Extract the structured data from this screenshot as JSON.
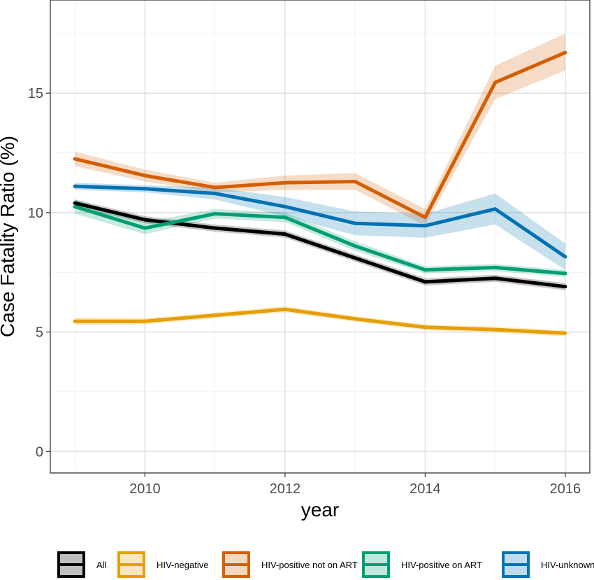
{
  "chart_data": {
    "type": "line",
    "title": "",
    "xlabel": "year",
    "ylabel": "Case Fatality Ratio (%)",
    "x": [
      2009,
      2010,
      2011,
      2012,
      2013,
      2014,
      2015,
      2016
    ],
    "xlim": [
      2008.65,
      2016.35
    ],
    "ylim": [
      -0.9,
      18.9
    ],
    "xticks": [
      2010,
      2012,
      2014,
      2016
    ],
    "yticks": [
      0,
      5,
      10,
      15
    ],
    "grid": true,
    "legend_position": "bottom",
    "series": [
      {
        "name": "All",
        "color": "#000000",
        "values": [
          10.4,
          9.7,
          9.35,
          9.1,
          8.1,
          7.1,
          7.25,
          6.9
        ],
        "lower": [
          10.25,
          9.55,
          9.2,
          8.95,
          7.95,
          6.95,
          7.1,
          6.75
        ],
        "upper": [
          10.55,
          9.85,
          9.5,
          9.25,
          8.25,
          7.25,
          7.4,
          7.05
        ]
      },
      {
        "name": "HIV-negative",
        "color": "#E69F00",
        "values": [
          5.45,
          5.45,
          5.7,
          5.95,
          5.55,
          5.2,
          5.1,
          4.95
        ],
        "lower": [
          5.3,
          5.32,
          5.58,
          5.82,
          5.43,
          5.08,
          4.98,
          4.82
        ],
        "upper": [
          5.6,
          5.58,
          5.82,
          6.08,
          5.67,
          5.32,
          5.22,
          5.08
        ]
      },
      {
        "name": "HIV-positive not on ART",
        "color": "#D55E00",
        "values": [
          12.25,
          11.55,
          11.05,
          11.25,
          11.3,
          9.8,
          15.45,
          16.7
        ],
        "lower": [
          11.95,
          11.3,
          10.85,
          10.95,
          10.95,
          9.45,
          14.75,
          15.95
        ],
        "upper": [
          12.55,
          11.8,
          11.25,
          11.55,
          11.65,
          10.15,
          16.15,
          17.5
        ]
      },
      {
        "name": "HIV-positive on ART",
        "color": "#009E73",
        "values": [
          10.25,
          9.35,
          9.95,
          9.8,
          8.6,
          7.6,
          7.7,
          7.45
        ],
        "lower": [
          9.95,
          9.1,
          9.75,
          9.6,
          8.4,
          7.45,
          7.55,
          7.3
        ],
        "upper": [
          10.55,
          9.6,
          10.15,
          10.0,
          8.8,
          7.75,
          7.85,
          7.6
        ]
      },
      {
        "name": "HIV-unknown",
        "color": "#0072B2",
        "values": [
          11.1,
          11.0,
          10.8,
          10.25,
          9.55,
          9.45,
          10.15,
          8.15
        ],
        "lower": [
          10.95,
          10.85,
          10.55,
          9.85,
          9.05,
          8.95,
          9.5,
          7.6
        ],
        "upper": [
          11.25,
          11.15,
          11.05,
          10.65,
          10.05,
          9.95,
          10.8,
          8.7
        ]
      }
    ]
  }
}
